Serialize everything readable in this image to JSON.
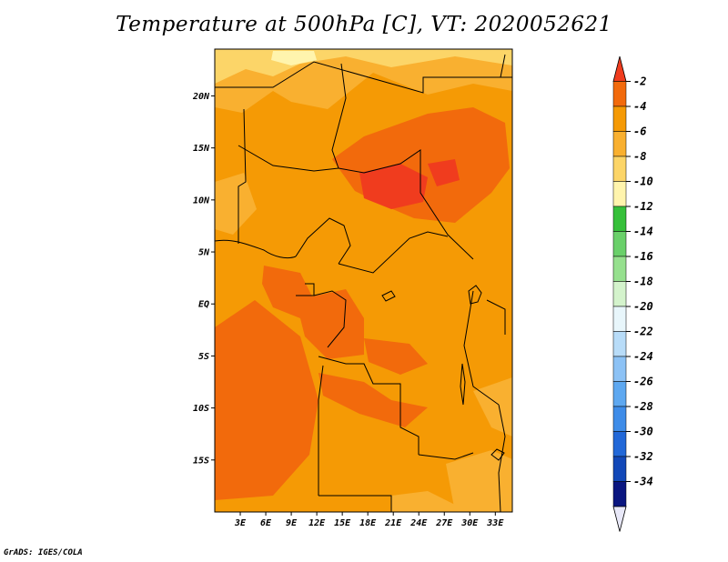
{
  "chart_data": {
    "type": "heatmap",
    "title": "Temperature at 500hPa [C], VT: 2020052621",
    "field": "Temperature at 500hPa",
    "units": "C",
    "valid_time": "2020052621",
    "x_tick_labels": [
      "3E",
      "6E",
      "9E",
      "12E",
      "15E",
      "18E",
      "21E",
      "24E",
      "27E",
      "30E",
      "33E"
    ],
    "x_tick_values": [
      3,
      6,
      9,
      12,
      15,
      18,
      21,
      24,
      27,
      30,
      33
    ],
    "y_tick_labels": [
      "20N",
      "15N",
      "10N",
      "5N",
      "EQ",
      "5S",
      "10S",
      "15S"
    ],
    "y_tick_values": [
      20,
      15,
      10,
      5,
      0,
      -5,
      -10,
      -15
    ],
    "xlim": [
      0,
      35
    ],
    "ylim": [
      -20,
      24.5
    ],
    "colorbar": {
      "labels": [
        "-2",
        "-4",
        "-6",
        "-8",
        "-10",
        "-12",
        "-14",
        "-16",
        "-18",
        "-20",
        "-22",
        "-24",
        "-26",
        "-28",
        "-30",
        "-32",
        "-34"
      ],
      "colors": [
        "#f03c1e",
        "#f26a0c",
        "#f59a05",
        "#f9b030",
        "#fcd568",
        "#fff4ad",
        "#36c03a",
        "#6ad06a",
        "#96e08e",
        "#d4f3cc",
        "#e8f6fb",
        "#b8dcf8",
        "#8cc2f5",
        "#5ea8f0",
        "#3e8ce8",
        "#2268d8",
        "#1248b8",
        "#0a1680",
        "#e8e8f8"
      ]
    },
    "regions": [
      {
        "value": "-6 to -4",
        "color": "#f59a05",
        "role": "background"
      },
      {
        "value": "-8 to -6",
        "color": "#f9b030",
        "role": "north"
      },
      {
        "value": "-10 to -8",
        "color": "#fcd568",
        "role": "north edge"
      },
      {
        "value": "-4 to -2",
        "color": "#f26a0c",
        "role": "warm core"
      },
      {
        "value": "-2",
        "color": "#f03c1e",
        "role": "hot spot"
      }
    ]
  },
  "footer": {
    "text": "GrADS: IGES/COLA"
  }
}
